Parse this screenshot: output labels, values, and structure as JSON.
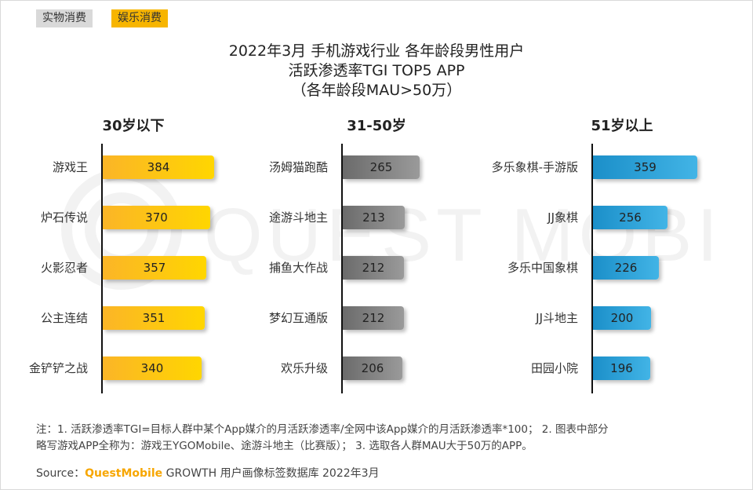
{
  "tabs": [
    {
      "label": "实物消费",
      "active": false
    },
    {
      "label": "娱乐消费",
      "active": true
    }
  ],
  "title": {
    "line1": "2022年3月 手机游戏行业 各年龄段男性用户",
    "line2": "活跃渗透率TGI TOP5 APP",
    "line3": "（各年龄段MAU>50万）"
  },
  "watermark": "QUEST MOBILE",
  "chart_data": [
    {
      "type": "bar",
      "orientation": "horizontal",
      "title": "30岁以下",
      "categories": [
        "游戏王",
        "炉石传说",
        "火影忍者",
        "公主连结",
        "金铲铲之战"
      ],
      "values": [
        384,
        370,
        357,
        351,
        340
      ],
      "color": "#fbb527"
    },
    {
      "type": "bar",
      "orientation": "horizontal",
      "title": "31-50岁",
      "categories": [
        "汤姆猫跑酷",
        "途游斗地主",
        "捕鱼大作战",
        "梦幻互通版",
        "欢乐升级"
      ],
      "values": [
        265,
        213,
        212,
        212,
        206
      ],
      "color": "#7a7a7a"
    },
    {
      "type": "bar",
      "orientation": "horizontal",
      "title": "51岁以上",
      "categories": [
        "多乐象棋-手游版",
        "JJ象棋",
        "多乐中国象棋",
        "JJ斗地主",
        "田园小院"
      ],
      "values": [
        359,
        256,
        226,
        200,
        196
      ],
      "color": "#1b8fc9"
    }
  ],
  "notes": {
    "line1": "注：1. 活跃渗透率TGI=目标人群中某个App媒介的月活跃渗透率/全网中该App媒介的月活跃渗透率*100； 2. 图表中部分",
    "line2": "略写游戏APP全称为：游戏王YGOMobile、途游斗地主（比赛版）； 3. 选取各人群MAU大于50万的APP。"
  },
  "source": {
    "prefix": "Source：",
    "brand": "QuestMobile",
    "text": " GROWTH 用户画像标签数据库 2022年3月"
  }
}
